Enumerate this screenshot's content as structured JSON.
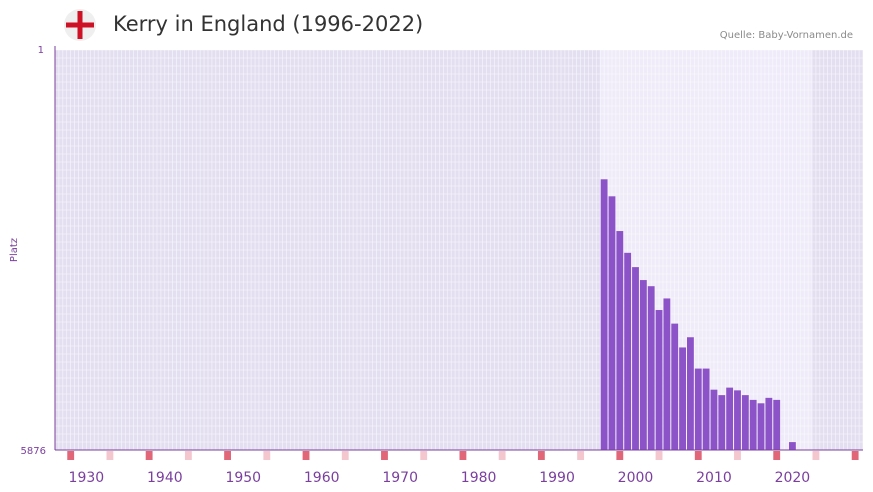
{
  "header": {
    "title": "Kerry in England (1996-2022)",
    "source": "Quelle: Baby-Vornamen.de",
    "flag_icon": "england-flag-icon"
  },
  "colors": {
    "bar": "#8c52c8",
    "plot_bg": "#e4dff0",
    "plot_bg_highlight": "#efebf8",
    "grid": "#ffffff",
    "axis": "#7b3f9e",
    "tick_label": "#7b3f9e",
    "decade_marker": "#e06678",
    "minor_marker": "#f4c6ce"
  },
  "chart_data": {
    "type": "bar",
    "title": "Kerry in England (1996-2022)",
    "xlabel": "",
    "ylabel": "Platz",
    "y_axis_inverted": true,
    "ylim": [
      1,
      5876
    ],
    "y_tick_labels": [
      "1",
      "5876"
    ],
    "xlim": [
      1926,
      2029
    ],
    "x_tick_labels": [
      "1930",
      "1940",
      "1950",
      "1960",
      "1970",
      "1980",
      "1990",
      "2000",
      "2010",
      "2020"
    ],
    "highlight_range": [
      1996,
      2022
    ],
    "series": [
      {
        "name": "Kerry",
        "x": [
          1996,
          1997,
          1998,
          1999,
          2000,
          2001,
          2002,
          2003,
          2004,
          2005,
          2006,
          2007,
          2008,
          2009,
          2010,
          2011,
          2012,
          2013,
          2014,
          2015,
          2016,
          2017,
          2018,
          2019,
          2020,
          2021,
          2022
        ],
        "values": [
          1900,
          2150,
          2660,
          2980,
          3190,
          3380,
          3470,
          3820,
          3650,
          4020,
          4370,
          4220,
          4680,
          4680,
          4990,
          5070,
          4960,
          5000,
          5070,
          5140,
          5190,
          5110,
          5140,
          5876,
          5760,
          5876,
          5876
        ]
      }
    ]
  }
}
